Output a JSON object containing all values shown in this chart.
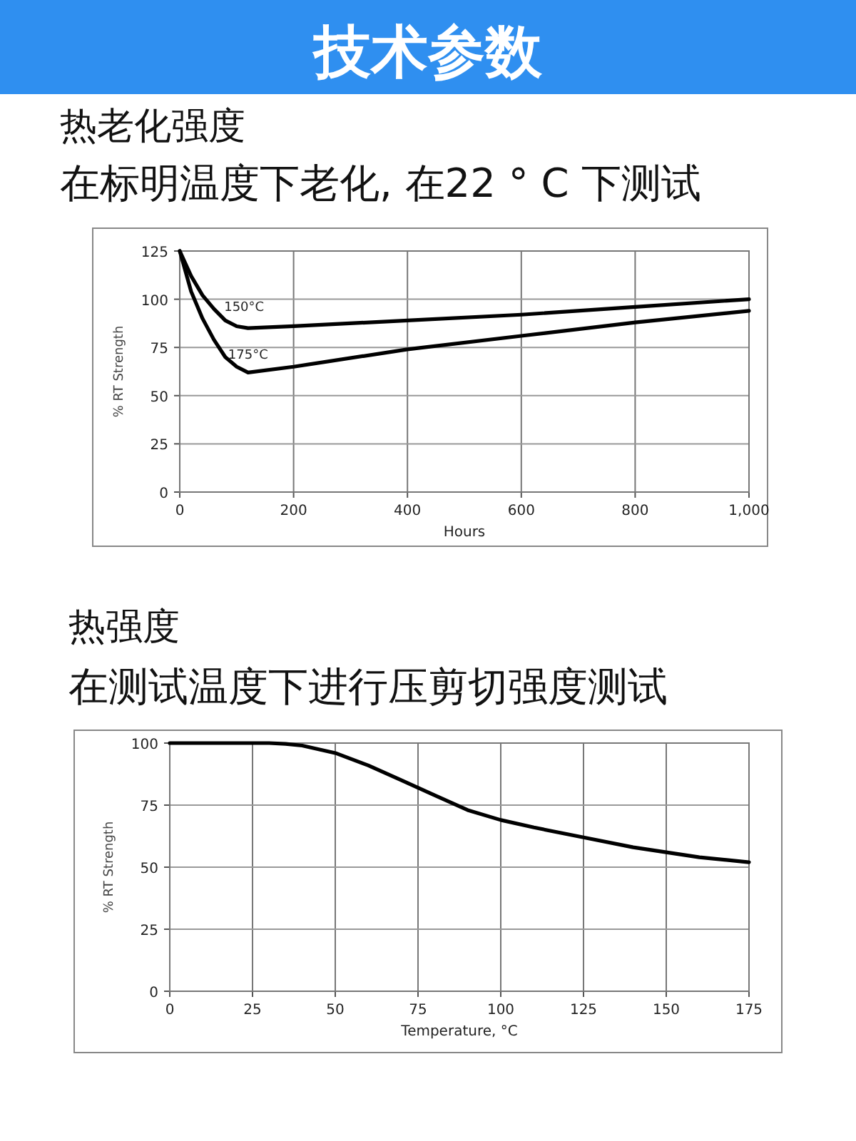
{
  "chart_data": [
    {
      "type": "line",
      "title": "热老化强度",
      "subtitle": "在标明温度下老化, 在22 ° C 下测试",
      "xlabel": "Hours",
      "ylabel": "% RT Strength",
      "annotations": [
        "技术参数",
        {
          "text": "150°C",
          "x": 78,
          "y": 94
        },
        {
          "text": "175°C",
          "x": 85,
          "y": 69
        }
      ],
      "xlim": [
        0,
        1000
      ],
      "ylim": [
        0,
        125
      ],
      "xticks": [
        0,
        200,
        400,
        600,
        800,
        {
          "value": 1000,
          "label": "1,000"
        }
      ],
      "yticks": [
        0,
        25,
        50,
        75,
        100,
        125
      ],
      "grid": true,
      "marker": "none",
      "line_style": "solid",
      "series": [
        {
          "color": "#000000",
          "x": [
            0,
            20,
            40,
            60,
            80,
            100,
            120,
            200,
            400,
            600,
            800,
            1000
          ],
          "values": [
            125,
            112,
            102,
            95,
            89,
            86,
            85,
            86,
            89,
            92,
            96,
            100
          ]
        },
        {
          "color": "#000000",
          "x": [
            0,
            20,
            40,
            60,
            80,
            100,
            120,
            200,
            400,
            600,
            800,
            1000
          ],
          "values": [
            125,
            104,
            90,
            79,
            70,
            65,
            62,
            65,
            74,
            81,
            88,
            94
          ]
        }
      ]
    },
    {
      "type": "line",
      "title": "热强度",
      "subtitle": "在测试温度下进行压剪切强度测试",
      "xlabel": "Temperature, °C",
      "ylabel": "% RT Strength",
      "xlim": [
        0,
        175
      ],
      "ylim": [
        0,
        100
      ],
      "xticks": [
        0,
        25,
        50,
        75,
        100,
        125,
        150,
        175
      ],
      "yticks": [
        0,
        25,
        50,
        75,
        100
      ],
      "grid": true,
      "marker": "none",
      "line_style": "solid",
      "series": [
        {
          "color": "#000000",
          "x": [
            0,
            10,
            20,
            30,
            35,
            40,
            50,
            60,
            70,
            75,
            80,
            90,
            100,
            110,
            125,
            140,
            150,
            160,
            175
          ],
          "values": [
            100,
            100,
            100,
            100,
            99.7,
            99,
            96,
            91,
            85,
            82,
            79,
            73,
            69,
            66,
            62,
            58,
            56,
            54,
            52
          ]
        }
      ]
    }
  ]
}
